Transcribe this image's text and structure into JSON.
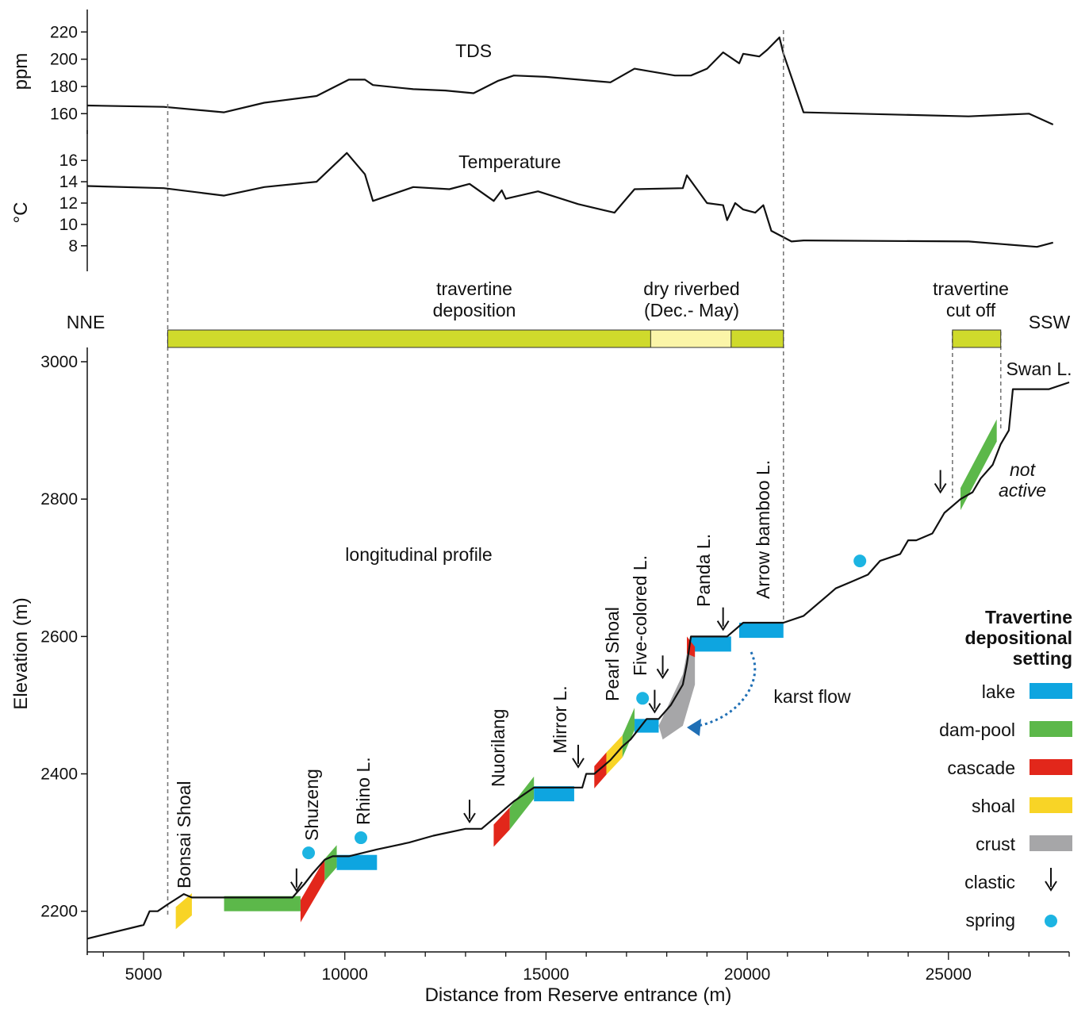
{
  "colors": {
    "lake": "#0ea5e0",
    "dam_pool": "#5cb84a",
    "cascade": "#e2271b",
    "shoal": "#f8d426",
    "crust": "#a6a6a8",
    "spring": "#1cb4e2",
    "travertine_bar": "#cfda2c",
    "dry_bar": "#fbf5a8",
    "karst_arrow": "#1f6fb5",
    "line": "#111111"
  },
  "chart_data": [
    {
      "type": "line",
      "ylabel": "ppm",
      "yticks": [
        160,
        180,
        200,
        220
      ],
      "ylim": [
        152,
        226
      ],
      "annotation": "TDS",
      "series": [
        {
          "name": "TDS",
          "x": [
            3600,
            5500,
            7000,
            8000,
            9300,
            10100,
            10500,
            10700,
            11700,
            12500,
            13200,
            13800,
            14200,
            15000,
            16600,
            17200,
            17600,
            18200,
            18600,
            19000,
            19400,
            19800,
            19900,
            20100,
            20300,
            20500,
            20800,
            20900,
            21400,
            25500,
            27000,
            27600
          ],
          "y": [
            166,
            165,
            161,
            168,
            173,
            185,
            185,
            181,
            178,
            177,
            175,
            184,
            188,
            187,
            183,
            193,
            191,
            188,
            188,
            193,
            205,
            197,
            204,
            203,
            202,
            207,
            216,
            204,
            161,
            158,
            160,
            152
          ]
        }
      ]
    },
    {
      "type": "line",
      "ylabel": "°C",
      "yticks": [
        8,
        10,
        12,
        14,
        16
      ],
      "ylim": [
        6.5,
        17.5
      ],
      "annotation": "Temperature",
      "series": [
        {
          "name": "Temperature",
          "x": [
            3600,
            5500,
            7000,
            8000,
            9300,
            10050,
            10500,
            10700,
            11700,
            12600,
            13100,
            13700,
            13900,
            14000,
            14800,
            15800,
            16700,
            17200,
            18400,
            18500,
            19000,
            19400,
            19500,
            19700,
            19900,
            20200,
            20400,
            20600,
            21100,
            21400,
            25500,
            27200,
            27600
          ],
          "y": [
            13.6,
            13.4,
            12.7,
            13.5,
            14,
            16.7,
            14.7,
            12.2,
            13.5,
            13.3,
            13.8,
            12.2,
            13.2,
            12.4,
            13.1,
            11.9,
            11.1,
            13.3,
            13.4,
            14.6,
            12.0,
            11.8,
            10.4,
            12.0,
            11.4,
            11.1,
            11.8,
            9.4,
            8.4,
            8.5,
            8.4,
            7.9,
            8.3
          ]
        }
      ]
    },
    {
      "type": "line",
      "ylabel": "Elevation (m)",
      "xlabel": "Distance from Reserve entrance (m)",
      "xticks": [
        5000,
        10000,
        15000,
        20000,
        25000
      ],
      "xlim": [
        3600,
        28000
      ],
      "yticks": [
        2200,
        2400,
        2600,
        2800,
        3000
      ],
      "ylim": [
        2150,
        3000
      ],
      "annotation": "longitudinal profile",
      "series": [
        {
          "name": "longitudinal profile",
          "x": [
            3600,
            5000,
            5150,
            5350,
            5600,
            6000,
            6200,
            6400,
            7000,
            8000,
            8700,
            9000,
            9200,
            9500,
            9700,
            9850,
            10100,
            10800,
            11600,
            12200,
            13000,
            13400,
            13700,
            14200,
            14700,
            15200,
            15900,
            16000,
            16200,
            16400,
            16600,
            16900,
            17100,
            17500,
            17600,
            17800,
            18100,
            18400,
            18500,
            18600,
            19100,
            19500,
            19700,
            19900,
            20100,
            20300,
            20600,
            20900,
            21400,
            22000,
            22200,
            22600,
            23000,
            23300,
            23800,
            24000,
            24200,
            24600,
            24700,
            24900,
            25300,
            25600,
            25800,
            26100,
            26300,
            26500,
            26600,
            27500,
            28000
          ],
          "y": [
            2160,
            2180,
            2200,
            2200,
            2210,
            2225,
            2220,
            2220,
            2220,
            2220,
            2220,
            2240,
            2255,
            2275,
            2280,
            2280,
            2280,
            2290,
            2300,
            2310,
            2320,
            2320,
            2335,
            2360,
            2380,
            2380,
            2380,
            2400,
            2400,
            2410,
            2420,
            2440,
            2450,
            2480,
            2480,
            2480,
            2500,
            2530,
            2560,
            2600,
            2600,
            2600,
            2610,
            2620,
            2620,
            2620,
            2620,
            2620,
            2630,
            2660,
            2670,
            2680,
            2690,
            2710,
            2720,
            2740,
            2740,
            2750,
            2760,
            2780,
            2800,
            2810,
            2830,
            2850,
            2880,
            2900,
            2960,
            2960,
            2970
          ]
        }
      ]
    }
  ],
  "depositional_bars": {
    "travertine_label": [
      "travertine",
      "deposition"
    ],
    "dry_label": [
      "dry riverbed",
      "(Dec.- May)"
    ],
    "cutoff_label": [
      "travertine",
      "cut off"
    ],
    "bar_main": [
      5600,
      20900
    ],
    "bar_dry": [
      17600,
      19600
    ],
    "bar_cutoff": [
      25100,
      26300
    ]
  },
  "directions": {
    "left": "NNE",
    "right": "SSW"
  },
  "site_labels": [
    {
      "text": "Bonsai Shoal",
      "x": 5800,
      "y": 2190,
      "rot": true
    },
    {
      "text": "Shuzeng",
      "x": 9000,
      "y": 2310,
      "rot": true
    },
    {
      "text": "Rhino L.",
      "x": 10400,
      "y": 2330,
      "rot": true
    },
    {
      "text": "Nuorilang",
      "x": 13600,
      "y": 2360,
      "rot": true
    },
    {
      "text": "Mirror L.",
      "x": 15300,
      "y": 2440,
      "rot": true
    },
    {
      "text": "Pearl Shoal",
      "x": 16800,
      "y": 2520,
      "rot": true
    },
    {
      "text": "Five-colored L.",
      "x": 17500,
      "y": 2560,
      "rot": true
    },
    {
      "text": "Panda L.",
      "x": 18900,
      "y": 2650,
      "rot": true
    },
    {
      "text": "Arrow bamboo L.",
      "x": 20500,
      "y": 2640,
      "rot": true
    },
    {
      "text": "Swan L.",
      "x": 26500,
      "y": 2985,
      "rot": false
    }
  ],
  "annotations": {
    "karst_flow": "karst flow",
    "not_active": [
      "not",
      "active"
    ]
  },
  "settings": [
    {
      "type": "shoal",
      "x0": 5800,
      "x1": 6200,
      "y0": 2190,
      "y1": 2210,
      "slope": true
    },
    {
      "type": "dam_pool",
      "x0": 7000,
      "x1": 8900,
      "y": 2200,
      "h": 22
    },
    {
      "type": "cascade",
      "x0": 8900,
      "x1": 9500,
      "y0": 2200,
      "y1": 2260,
      "slope": true
    },
    {
      "type": "dam_pool",
      "x0": 9500,
      "x1": 9800,
      "y0": 2260,
      "y1": 2280,
      "slope": true
    },
    {
      "type": "lake",
      "x0": 9800,
      "x1": 10800,
      "y": 2260,
      "h": 22
    },
    {
      "type": "cascade",
      "x0": 13700,
      "x1": 14100,
      "y0": 2310,
      "y1": 2335,
      "slope": true
    },
    {
      "type": "dam_pool",
      "x0": 14100,
      "x1": 14700,
      "y0": 2335,
      "y1": 2380,
      "slope": true
    },
    {
      "type": "lake",
      "x0": 14700,
      "x1": 15700,
      "y": 2360,
      "h": 22
    },
    {
      "type": "cascade",
      "x0": 16200,
      "x1": 16500,
      "y0": 2395,
      "y1": 2415,
      "slope": true
    },
    {
      "type": "shoal",
      "x0": 16500,
      "x1": 16900,
      "y0": 2415,
      "y1": 2440,
      "slope": true
    },
    {
      "type": "dam_pool",
      "x0": 16900,
      "x1": 17200,
      "y0": 2440,
      "y1": 2480,
      "slope": true
    },
    {
      "type": "lake",
      "x0": 17200,
      "x1": 17800,
      "y": 2460,
      "h": 20
    },
    {
      "type": "lake",
      "x0": 18600,
      "x1": 19600,
      "y": 2578,
      "h": 22
    },
    {
      "type": "lake",
      "x0": 19800,
      "x1": 20900,
      "y": 2598,
      "h": 22
    },
    {
      "type": "dam_pool",
      "x0": 25300,
      "x1": 26200,
      "y0": 2800,
      "y1": 2900,
      "slope": true
    }
  ],
  "clastic_arrows": [
    {
      "x": 8800,
      "y": 2230
    },
    {
      "x": 13100,
      "y": 2330
    },
    {
      "x": 15800,
      "y": 2410
    },
    {
      "x": 17700,
      "y": 2490
    },
    {
      "x": 17900,
      "y": 2540
    },
    {
      "x": 19400,
      "y": 2610
    },
    {
      "x": 24800,
      "y": 2810
    }
  ],
  "springs": [
    {
      "x": 9100,
      "y": 2285
    },
    {
      "x": 10400,
      "y": 2307
    },
    {
      "x": 17400,
      "y": 2510
    },
    {
      "x": 22800,
      "y": 2710
    }
  ],
  "legend": {
    "title": [
      "Travertine",
      "depositional",
      "setting"
    ],
    "items": [
      {
        "label": "lake",
        "key": "lake",
        "kind": "rect"
      },
      {
        "label": "dam-pool",
        "key": "dam_pool",
        "kind": "rect"
      },
      {
        "label": "cascade",
        "key": "cascade",
        "kind": "rect"
      },
      {
        "label": "shoal",
        "key": "shoal",
        "kind": "rect"
      },
      {
        "label": "crust",
        "key": "crust",
        "kind": "rect"
      },
      {
        "label": "clastic",
        "key": "line",
        "kind": "arrow"
      },
      {
        "label": "spring",
        "key": "spring",
        "kind": "dot"
      }
    ]
  }
}
